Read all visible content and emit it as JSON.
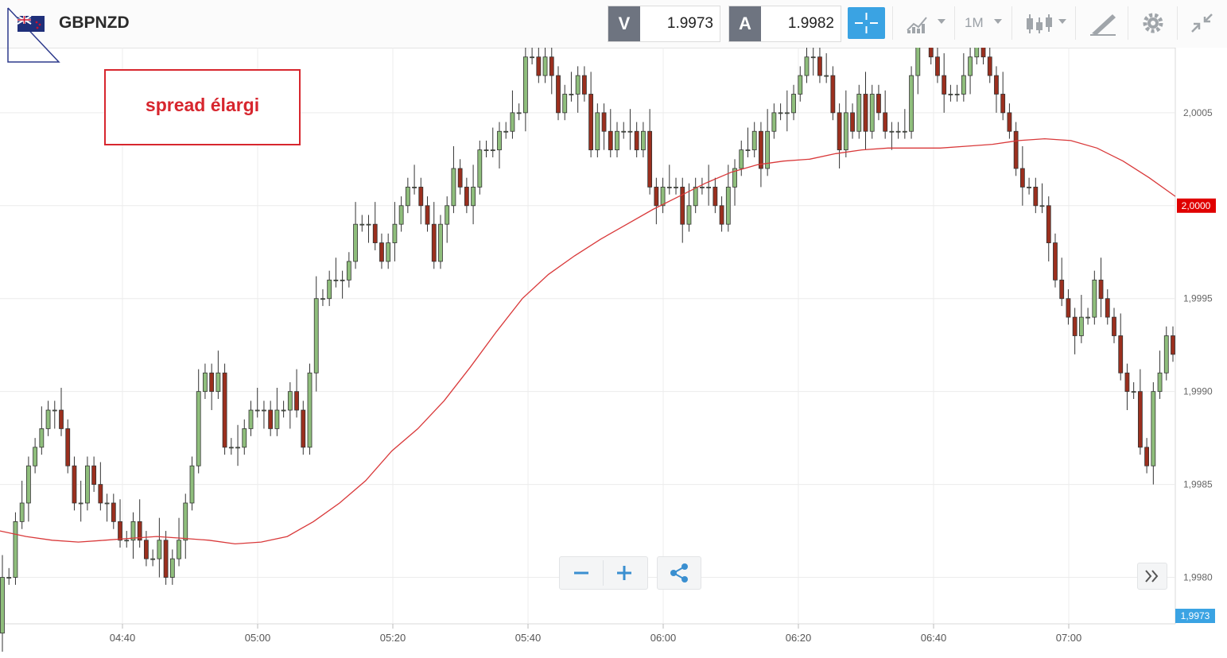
{
  "header": {
    "symbol": "GBPNZD",
    "sell": {
      "label": "V",
      "value": "1.9973"
    },
    "buy": {
      "label": "A",
      "value": "1.9982"
    },
    "timeframe": "1M",
    "icons": [
      "crosshair-icon",
      "chart-type-icon",
      "candles-icon",
      "drawing-tools-icon",
      "gear-icon",
      "collapse-icon"
    ]
  },
  "annotation": {
    "text": "spread élargi",
    "color": "#d7262e"
  },
  "colors": {
    "up": "#8fbe7c",
    "down": "#9b2f1e",
    "ma": "#d9393a",
    "grid": "#ececec",
    "current_badge": "#e00000",
    "last_badge": "#3aa3e3"
  },
  "chart_data": {
    "type": "candlestick",
    "y_ticks": [
      "1,9980",
      "1,9985",
      "1,9990",
      "1,9995",
      "2,0000",
      "2,0005"
    ],
    "x_ticks": [
      "04:40",
      "05:00",
      "05:20",
      "05:40",
      "06:00",
      "06:20",
      "06:40",
      "07:00"
    ],
    "ylim": [
      1.99775,
      2.00085
    ],
    "price_marker": "2,0000",
    "last_price": "1,9973",
    "candles_open_close": [
      [
        1.9977,
        1.998
      ],
      [
        1.998,
        1.998
      ],
      [
        1.998,
        1.9983
      ],
      [
        1.9983,
        1.9984
      ],
      [
        1.9984,
        1.9986
      ],
      [
        1.9986,
        1.9987
      ],
      [
        1.9987,
        1.9988
      ],
      [
        1.9988,
        1.9989
      ],
      [
        1.9989,
        1.9989
      ],
      [
        1.9989,
        1.9988
      ],
      [
        1.9988,
        1.9986
      ],
      [
        1.9986,
        1.9984
      ],
      [
        1.9984,
        1.9984
      ],
      [
        1.9984,
        1.9986
      ],
      [
        1.9986,
        1.9985
      ],
      [
        1.9985,
        1.9984
      ],
      [
        1.9984,
        1.9984
      ],
      [
        1.9984,
        1.9983
      ],
      [
        1.9983,
        1.9982
      ],
      [
        1.9982,
        1.9982
      ],
      [
        1.9982,
        1.9983
      ],
      [
        1.9983,
        1.9982
      ],
      [
        1.9982,
        1.9981
      ],
      [
        1.9981,
        1.9981
      ],
      [
        1.9981,
        1.9982
      ],
      [
        1.9982,
        1.998
      ],
      [
        1.998,
        1.9981
      ],
      [
        1.9981,
        1.9982
      ],
      [
        1.9982,
        1.9984
      ],
      [
        1.9984,
        1.9986
      ],
      [
        1.9986,
        1.999
      ],
      [
        1.999,
        1.9991
      ],
      [
        1.9991,
        1.999
      ],
      [
        1.999,
        1.9991
      ],
      [
        1.9991,
        1.9987
      ],
      [
        1.9987,
        1.9987
      ],
      [
        1.9987,
        1.9987
      ],
      [
        1.9987,
        1.9988
      ],
      [
        1.9988,
        1.9989
      ],
      [
        1.9989,
        1.9989
      ],
      [
        1.9989,
        1.9989
      ],
      [
        1.9989,
        1.9988
      ],
      [
        1.9988,
        1.9989
      ],
      [
        1.9989,
        1.9989
      ],
      [
        1.9989,
        1.999
      ],
      [
        1.999,
        1.9989
      ],
      [
        1.9989,
        1.9987
      ],
      [
        1.9987,
        1.9991
      ],
      [
        1.9991,
        1.9995
      ],
      [
        1.9995,
        1.9995
      ],
      [
        1.9995,
        1.9996
      ],
      [
        1.9996,
        1.9996
      ],
      [
        1.9996,
        1.9996
      ],
      [
        1.9996,
        1.9997
      ],
      [
        1.9997,
        1.9999
      ],
      [
        1.9999,
        1.9999
      ],
      [
        1.9999,
        1.9999
      ],
      [
        1.9999,
        1.9998
      ],
      [
        1.9998,
        1.9997
      ],
      [
        1.9997,
        1.9998
      ],
      [
        1.9998,
        1.9999
      ],
      [
        1.9999,
        2.0
      ],
      [
        2.0,
        2.0001
      ],
      [
        2.0001,
        2.0001
      ],
      [
        2.0001,
        2.0
      ],
      [
        2.0,
        1.9999
      ],
      [
        1.9999,
        1.9997
      ],
      [
        1.9997,
        1.9999
      ],
      [
        1.9999,
        2.0
      ],
      [
        2.0,
        2.0002
      ],
      [
        2.0002,
        2.0001
      ],
      [
        2.0001,
        2.0
      ],
      [
        2.0,
        2.0001
      ],
      [
        2.0001,
        2.0003
      ],
      [
        2.0003,
        2.0003
      ],
      [
        2.0003,
        2.0003
      ],
      [
        2.0003,
        2.0004
      ],
      [
        2.0004,
        2.0004
      ],
      [
        2.0004,
        2.0005
      ],
      [
        2.0005,
        2.0005
      ],
      [
        2.0005,
        2.0008
      ],
      [
        2.0008,
        2.0008
      ],
      [
        2.0008,
        2.0007
      ],
      [
        2.0007,
        2.0008
      ],
      [
        2.0008,
        2.0007
      ],
      [
        2.0007,
        2.0005
      ],
      [
        2.0005,
        2.0006
      ],
      [
        2.0006,
        2.0006
      ],
      [
        2.0006,
        2.0007
      ],
      [
        2.0007,
        2.0006
      ],
      [
        2.0006,
        2.0003
      ],
      [
        2.0003,
        2.0005
      ],
      [
        2.0005,
        2.0004
      ],
      [
        2.0004,
        2.0003
      ],
      [
        2.0003,
        2.0004
      ],
      [
        2.0004,
        2.0004
      ],
      [
        2.0004,
        2.0004
      ],
      [
        2.0004,
        2.0003
      ],
      [
        2.0003,
        2.0004
      ],
      [
        2.0004,
        2.0001
      ],
      [
        2.0001,
        2.0
      ],
      [
        2.0,
        2.0001
      ],
      [
        2.0001,
        2.0001
      ],
      [
        2.0001,
        2.0001
      ],
      [
        2.0001,
        1.9999
      ],
      [
        1.9999,
        2.0
      ],
      [
        2.0,
        2.0001
      ],
      [
        2.0001,
        2.0001
      ],
      [
        2.0001,
        2.0001
      ],
      [
        2.0001,
        2.0
      ],
      [
        2.0,
        1.9999
      ],
      [
        1.9999,
        2.0001
      ],
      [
        2.0001,
        2.0002
      ],
      [
        2.0002,
        2.0003
      ],
      [
        2.0003,
        2.0003
      ],
      [
        2.0003,
        2.0004
      ],
      [
        2.0004,
        2.0002
      ],
      [
        2.0002,
        2.0004
      ],
      [
        2.0004,
        2.0005
      ],
      [
        2.0005,
        2.0005
      ],
      [
        2.0005,
        2.0005
      ],
      [
        2.0005,
        2.0006
      ],
      [
        2.0006,
        2.0007
      ],
      [
        2.0007,
        2.0008
      ],
      [
        2.0008,
        2.0008
      ],
      [
        2.0008,
        2.0007
      ],
      [
        2.0007,
        2.0007
      ],
      [
        2.0007,
        2.0005
      ],
      [
        2.0005,
        2.0003
      ],
      [
        2.0003,
        2.0005
      ],
      [
        2.0005,
        2.0004
      ],
      [
        2.0004,
        2.0006
      ],
      [
        2.0006,
        2.0004
      ],
      [
        2.0004,
        2.0006
      ],
      [
        2.0006,
        2.0005
      ],
      [
        2.0005,
        2.0004
      ],
      [
        2.0004,
        2.0004
      ],
      [
        2.0004,
        2.0004
      ],
      [
        2.0004,
        2.0004
      ],
      [
        2.0004,
        2.0007
      ],
      [
        2.0007,
        2.0009
      ],
      [
        2.0009,
        2.0009
      ],
      [
        2.0009,
        2.0008
      ],
      [
        2.0008,
        2.0007
      ],
      [
        2.0007,
        2.0006
      ],
      [
        2.0006,
        2.0006
      ],
      [
        2.0006,
        2.0006
      ],
      [
        2.0006,
        2.0007
      ],
      [
        2.0007,
        2.0008
      ],
      [
        2.0008,
        2.0009
      ],
      [
        2.0009,
        2.0008
      ],
      [
        2.0008,
        2.0007
      ],
      [
        2.0007,
        2.0006
      ],
      [
        2.0006,
        2.0005
      ],
      [
        2.0005,
        2.0004
      ],
      [
        2.0004,
        2.0002
      ],
      [
        2.0002,
        2.0001
      ],
      [
        2.0001,
        2.0001
      ],
      [
        2.0001,
        2.0
      ],
      [
        2.0,
        2.0
      ],
      [
        2.0,
        1.9998
      ],
      [
        1.9998,
        1.9996
      ],
      [
        1.9996,
        1.9995
      ],
      [
        1.9995,
        1.9994
      ],
      [
        1.9994,
        1.9993
      ],
      [
        1.9993,
        1.9994
      ],
      [
        1.9994,
        1.9994
      ],
      [
        1.9994,
        1.9996
      ],
      [
        1.9996,
        1.9995
      ],
      [
        1.9995,
        1.9994
      ],
      [
        1.9994,
        1.9993
      ],
      [
        1.9993,
        1.9991
      ],
      [
        1.9991,
        1.999
      ],
      [
        1.999,
        1.999
      ],
      [
        1.999,
        1.9987
      ],
      [
        1.9987,
        1.9986
      ],
      [
        1.9986,
        1.999
      ],
      [
        1.999,
        1.9991
      ],
      [
        1.9991,
        1.9993
      ],
      [
        1.9993,
        1.9992
      ]
    ],
    "ma_series": [
      1.99825,
      1.99822,
      1.9982,
      1.99819,
      1.9982,
      1.99821,
      1.99822,
      1.99821,
      1.9982,
      1.99818,
      1.99819,
      1.99822,
      1.9983,
      1.9984,
      1.99852,
      1.99868,
      1.9988,
      1.99895,
      1.99913,
      1.99932,
      1.9995,
      1.99963,
      1.99973,
      1.99982,
      1.9999,
      1.99998,
      2.00005,
      2.00012,
      2.00018,
      2.00022,
      2.00024,
      2.00025,
      2.00028,
      2.0003,
      2.00031,
      2.00031,
      2.00031,
      2.00032,
      2.00033,
      2.00035,
      2.00036,
      2.00035,
      2.00031,
      2.00024,
      2.00015,
      2.00005
    ]
  }
}
